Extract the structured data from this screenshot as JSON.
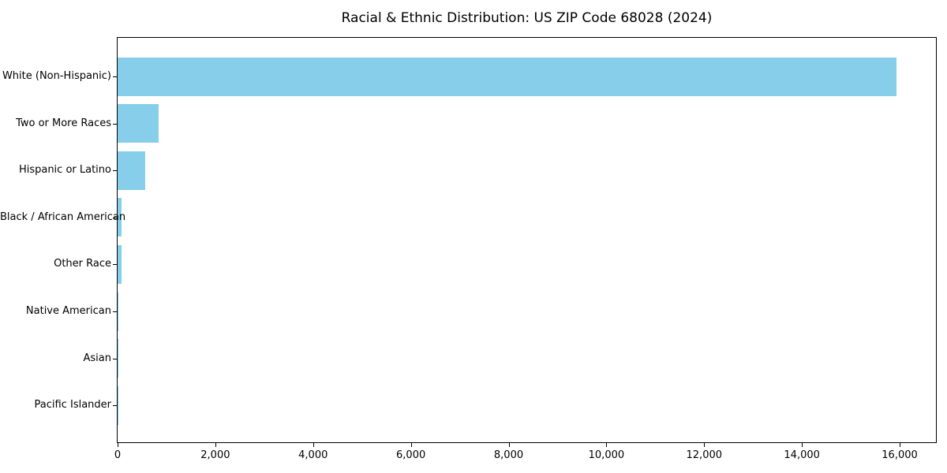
{
  "chart_data": {
    "type": "bar",
    "orientation": "horizontal",
    "title": "Racial & Ethnic Distribution: US ZIP Code 68028 (2024)",
    "categories": [
      "White (Non-Hispanic)",
      "Two or More Races",
      "Hispanic or Latino",
      "Black / African American",
      "Other Race",
      "Native American",
      "Asian",
      "Pacific Islander"
    ],
    "values": [
      15930,
      840,
      565,
      75,
      74,
      16,
      13,
      2
    ],
    "xlabel": "",
    "ylabel": "",
    "xlim": [
      0,
      16742
    ],
    "x_ticks": [
      0,
      2000,
      4000,
      6000,
      8000,
      10000,
      12000,
      14000,
      16000
    ],
    "x_tick_labels": [
      "0",
      "2,000",
      "4,000",
      "6,000",
      "8,000",
      "10,000",
      "12,000",
      "14,000",
      "16,000"
    ],
    "bar_color": "#87CEEB",
    "axis_color": "#000000",
    "grid": false,
    "legend": null
  }
}
